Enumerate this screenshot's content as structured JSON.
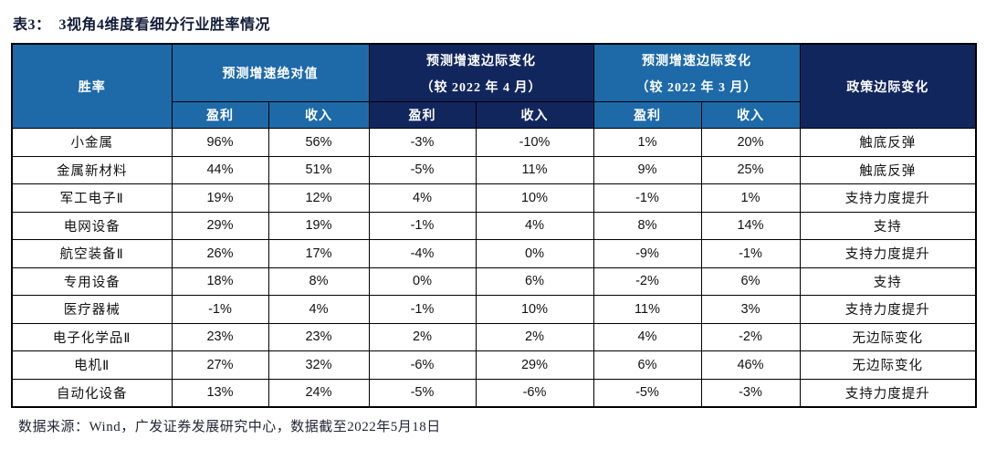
{
  "page": {
    "title_label": "表3：",
    "title_text": "3视角4维度看细分行业胜率情况",
    "footer": "数据来源：Wind，广发证券发展研究中心，数据截至2022年5月18日"
  },
  "colors": {
    "header_blue": "#1E6AA9",
    "header_navy": "#12265E",
    "title_text": "#131B38",
    "border": "#000000"
  },
  "table": {
    "col_headers": {
      "winrate": "胜率",
      "policy": "政策边际变化"
    },
    "groups": {
      "abs": {
        "title": "预测增速绝对值"
      },
      "apr": {
        "line1": "预测增速边际变化",
        "line2": "（较 2022 年 4 月）"
      },
      "mar": {
        "line1": "预测增速边际变化",
        "line2": "（较 2022 年 3 月）"
      }
    },
    "sub_headers": [
      "盈利",
      "收入"
    ],
    "rows": [
      {
        "name": "小金属",
        "values": [
          "96%",
          "56%",
          "-3%",
          "-10%",
          "1%",
          "20%"
        ],
        "policy": "触底反弹"
      },
      {
        "name": "金属新材料",
        "values": [
          "44%",
          "51%",
          "-5%",
          "11%",
          "9%",
          "25%"
        ],
        "policy": "触底反弹"
      },
      {
        "name": "军工电子Ⅱ",
        "values": [
          "19%",
          "12%",
          "4%",
          "10%",
          "-1%",
          "1%"
        ],
        "policy": "支持力度提升"
      },
      {
        "name": "电网设备",
        "values": [
          "29%",
          "19%",
          "-1%",
          "4%",
          "8%",
          "14%"
        ],
        "policy": "支持"
      },
      {
        "name": "航空装备Ⅱ",
        "values": [
          "26%",
          "17%",
          "-4%",
          "0%",
          "-9%",
          "-1%"
        ],
        "policy": "支持力度提升"
      },
      {
        "name": "专用设备",
        "values": [
          "18%",
          "8%",
          "0%",
          "6%",
          "-2%",
          "6%"
        ],
        "policy": "支持"
      },
      {
        "name": "医疗器械",
        "values": [
          "-1%",
          "4%",
          "-1%",
          "10%",
          "11%",
          "3%"
        ],
        "policy": "支持力度提升"
      },
      {
        "name": "电子化学品Ⅱ",
        "values": [
          "23%",
          "23%",
          "2%",
          "2%",
          "4%",
          "-2%"
        ],
        "policy": "无边际变化"
      },
      {
        "name": "电机Ⅱ",
        "values": [
          "27%",
          "32%",
          "-6%",
          "29%",
          "6%",
          "46%"
        ],
        "policy": "无边际变化"
      },
      {
        "name": "自动化设备",
        "values": [
          "13%",
          "24%",
          "-5%",
          "-6%",
          "-5%",
          "-3%"
        ],
        "policy": "支持力度提升"
      }
    ]
  }
}
